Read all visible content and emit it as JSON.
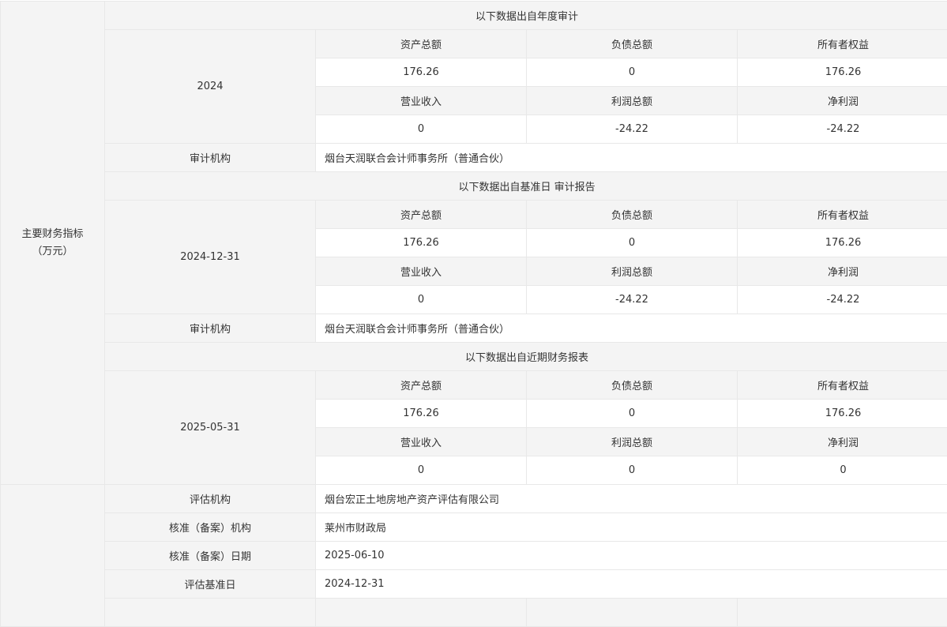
{
  "main_label": {
    "line1": "主要财务指标",
    "line2": "（万元）"
  },
  "sections": [
    {
      "header": "以下数据出自年度审计",
      "period": "2024",
      "labels1": [
        "资产总额",
        "负债总额",
        "所有者权益"
      ],
      "values1": [
        "176.26",
        "0",
        "176.26"
      ],
      "labels2": [
        "营业收入",
        "利润总额",
        "净利润"
      ],
      "values2": [
        "0",
        "-24.22",
        "-24.22"
      ],
      "audit_label": "审计机构",
      "audit_org": "烟台天润联合会计师事务所（普通合伙）"
    },
    {
      "header": "以下数据出自基准日 审计报告",
      "period": "2024-12-31",
      "labels1": [
        "资产总额",
        "负债总额",
        "所有者权益"
      ],
      "values1": [
        "176.26",
        "0",
        "176.26"
      ],
      "labels2": [
        "营业收入",
        "利润总额",
        "净利润"
      ],
      "values2": [
        "0",
        "-24.22",
        "-24.22"
      ],
      "audit_label": "审计机构",
      "audit_org": "烟台天润联合会计师事务所（普通合伙）"
    },
    {
      "header": "以下数据出自近期财务报表",
      "period": "2025-05-31",
      "labels1": [
        "资产总额",
        "负债总额",
        "所有者权益"
      ],
      "values1": [
        "176.26",
        "0",
        "176.26"
      ],
      "labels2": [
        "营业收入",
        "利润总额",
        "净利润"
      ],
      "values2": [
        "0",
        "0",
        "0"
      ]
    }
  ],
  "assessment": [
    {
      "label": "评估机构",
      "value": "烟台宏正土地房地产资产评估有限公司"
    },
    {
      "label": "核准（备案）机构",
      "value": "莱州市财政局"
    },
    {
      "label": "核准（备案）日期",
      "value": "2025-06-10"
    },
    {
      "label": "评估基准日",
      "value": "2024-12-31"
    }
  ]
}
